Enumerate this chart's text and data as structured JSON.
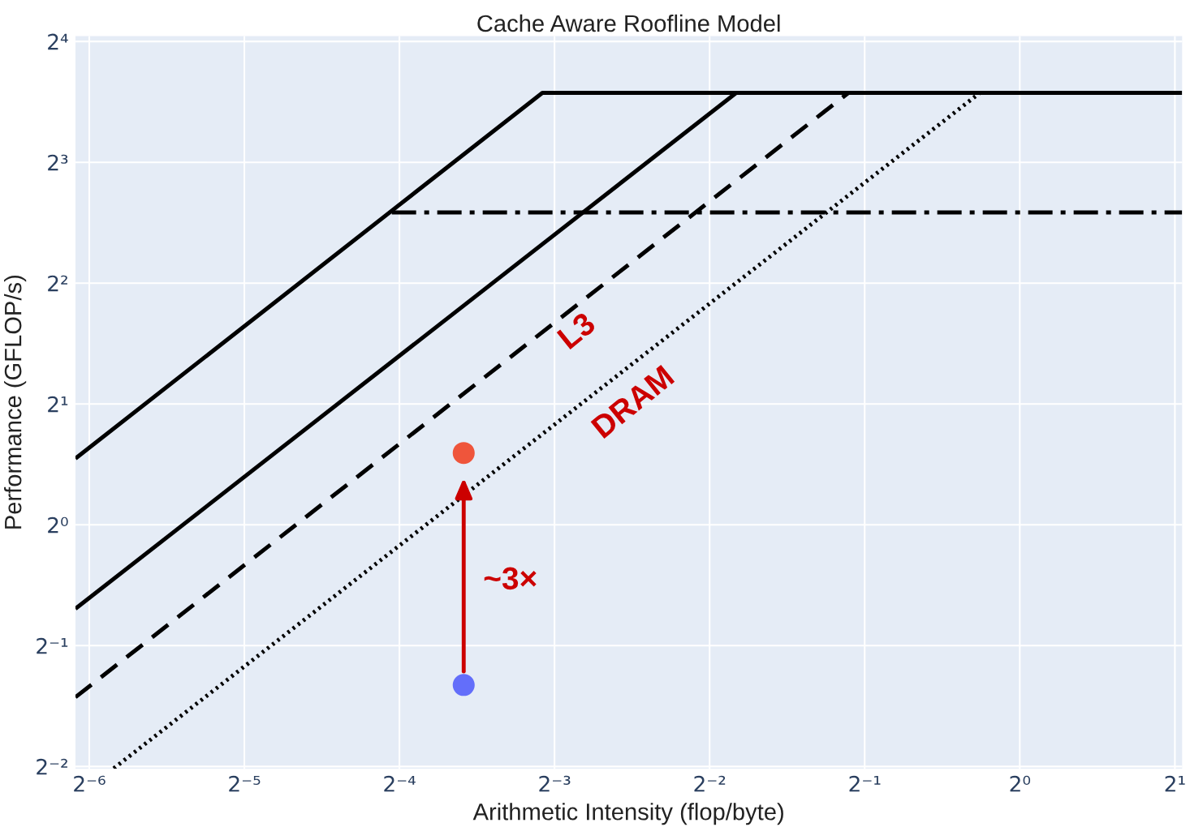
{
  "chart_data": {
    "type": "line",
    "title": "Cache Aware Roofline Model",
    "xlabel": "Arithmetic Intensity (flop/byte)",
    "ylabel": "Performance (GFLOP/s)",
    "log": "xy",
    "grid": true,
    "xlim": [
      0.01469,
      2.066
    ],
    "ylim": [
      0.247,
      16.5
    ],
    "xticks": [
      {
        "value": 0.015625,
        "label": "2⁻⁶"
      },
      {
        "value": 0.03125,
        "label": "2⁻⁵"
      },
      {
        "value": 0.0625,
        "label": "2⁻⁴"
      },
      {
        "value": 0.125,
        "label": "2⁻³"
      },
      {
        "value": 0.25,
        "label": "2⁻²"
      },
      {
        "value": 0.5,
        "label": "2⁻¹"
      },
      {
        "value": 1,
        "label": "2⁰"
      },
      {
        "value": 2,
        "label": "2¹"
      }
    ],
    "yticks": [
      {
        "value": 0.25,
        "label": "2⁻²"
      },
      {
        "value": 0.5,
        "label": "2⁻¹"
      },
      {
        "value": 1,
        "label": "2⁰"
      },
      {
        "value": 2,
        "label": "2¹"
      },
      {
        "value": 4,
        "label": "2²"
      },
      {
        "value": 8,
        "label": "2³"
      },
      {
        "value": 16,
        "label": "2⁴"
      }
    ],
    "series": [
      {
        "color": "#000000",
        "line_style": "solid",
        "x": [
          0.01469,
          0.1184,
          2.066
        ],
        "values": [
          1.463,
          11.92,
          11.92
        ]
      },
      {
        "color": "#000000",
        "line_style": "solid",
        "x": [
          0.01469,
          0.2816
        ],
        "values": [
          0.618,
          11.92
        ]
      },
      {
        "color": "#000000",
        "line_style": "dashed",
        "x": [
          0.01469,
          0.465
        ],
        "values": [
          0.372,
          11.92
        ]
      },
      {
        "color": "#000000",
        "line_style": "dotted",
        "x": [
          0.01743,
          0.8366
        ],
        "values": [
          0.2473,
          11.92
        ]
      },
      {
        "color": "#000000",
        "line_style": "dashdot",
        "x": [
          0.0604,
          2.066
        ],
        "values": [
          6.0,
          6.0
        ]
      },
      {
        "type": "scatter",
        "marker": "circle",
        "color": "#636efa",
        "x": [
          0.0833
        ],
        "values": [
          0.399
        ]
      },
      {
        "type": "scatter",
        "marker": "circle",
        "color": "#ef553b",
        "x": [
          0.0833
        ],
        "values": [
          1.51
        ]
      }
    ],
    "annotations": [
      "L3",
      "DRAM",
      "~3×"
    ]
  }
}
